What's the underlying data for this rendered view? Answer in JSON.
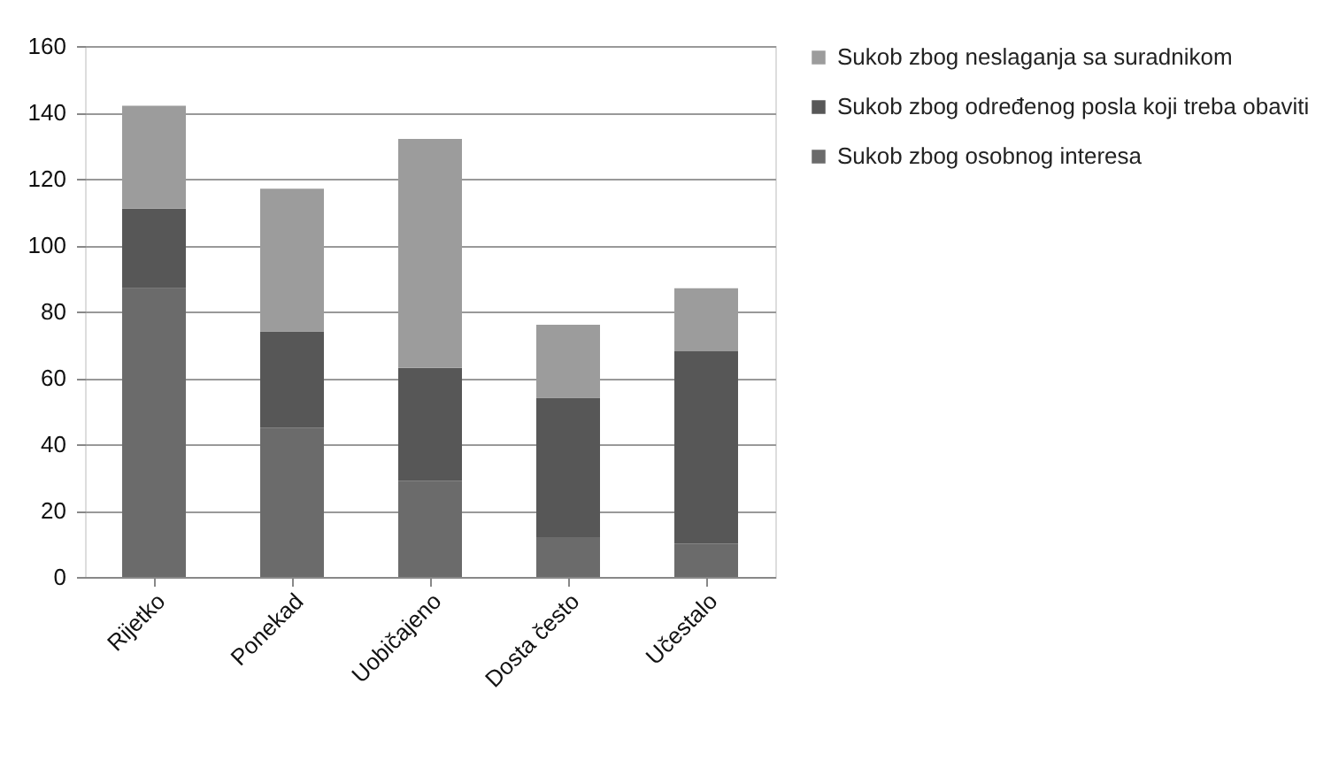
{
  "chart_data": {
    "type": "bar",
    "stacked": true,
    "categories": [
      "Rijetko",
      "Ponekad",
      "Uobičajeno",
      "Dosta često",
      "Učestalo"
    ],
    "series": [
      {
        "name": "Sukob zbog osobnog interesa",
        "color": "#6b6b6b",
        "values": [
          87,
          45,
          29,
          12,
          10
        ]
      },
      {
        "name": "Sukob zbog određenog posla koji treba obaviti",
        "color": "#575757",
        "values": [
          24,
          29,
          34,
          42,
          58
        ]
      },
      {
        "name": "Sukob zbog neslaganja sa suradnikom",
        "color": "#9c9c9c",
        "values": [
          31,
          43,
          69,
          22,
          19
        ]
      }
    ],
    "ylim": [
      0,
      160
    ],
    "yticks": [
      0,
      20,
      40,
      60,
      80,
      100,
      120,
      140,
      160
    ],
    "grid": "y",
    "legend": "right"
  }
}
